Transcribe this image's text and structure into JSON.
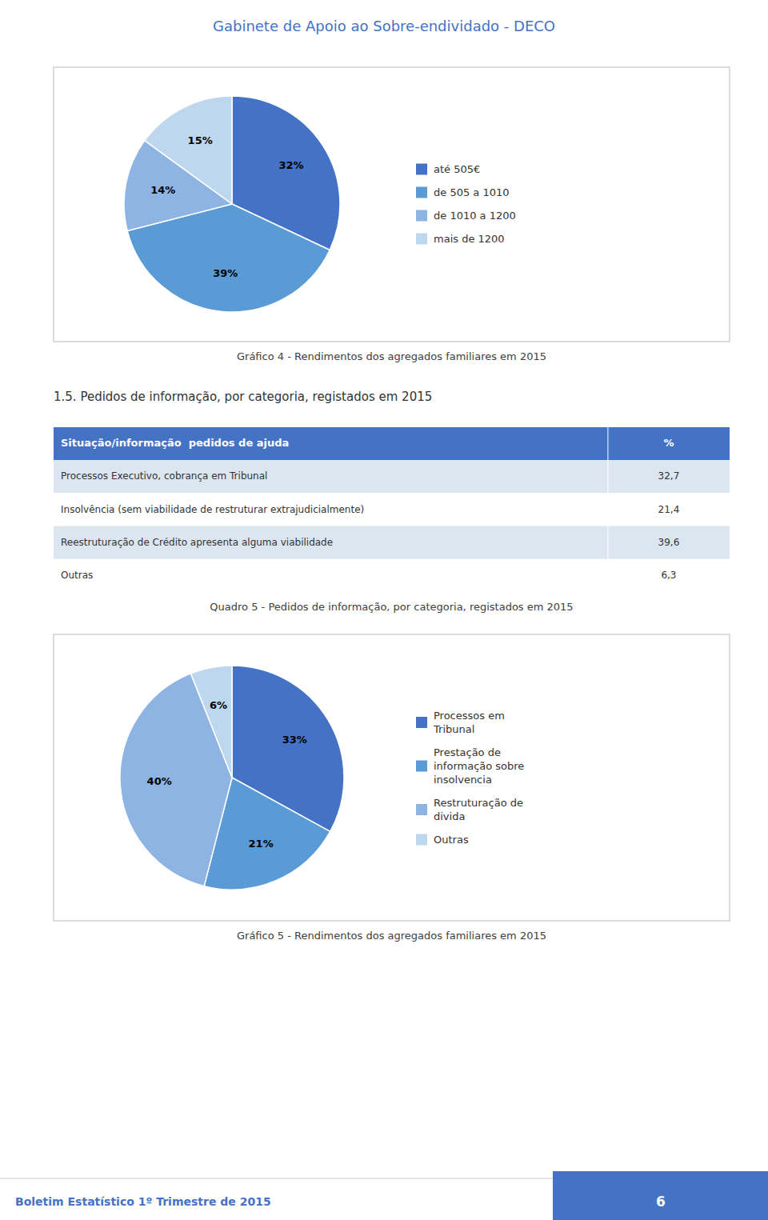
{
  "header": {
    "title": "Gabinete de Apoio ao Sobre-endividado - DECO"
  },
  "chart_data": [
    {
      "type": "pie",
      "title": "Gráfico 4 - Rendimentos dos agregados familiares em 2015",
      "categories": [
        "até 505€",
        "de 505 a 1010",
        "de 1010 a 1200",
        "mais de 1200"
      ],
      "values": [
        32,
        39,
        14,
        15
      ],
      "value_labels": [
        "32%",
        "39%",
        "14%",
        "15%"
      ],
      "colors": [
        "#4472C4",
        "#5B9BD5",
        "#8DB4E2",
        "#BDD7EE"
      ],
      "data_labels": true,
      "legend": "right"
    },
    {
      "type": "table",
      "title": "1.5. Pedidos de informação, por categoria, registados em 2015",
      "columns": [
        "Situação/informação  pedidos de ajuda",
        "%"
      ],
      "categories": [
        "Processos Executivo, cobrança em Tribunal",
        "Insolvência (sem viabilidade de restruturar extrajudicialmente)",
        "Reestruturação de Crédito apresenta alguma viabilidade",
        "Outras"
      ],
      "values": [
        32.7,
        21.4,
        39.6,
        6.3
      ],
      "value_labels": [
        "32,7",
        "21,4",
        "39,6",
        "6,3"
      ],
      "annotations": [
        "Quadro 5 - Pedidos de informação, por categoria, registados em 2015"
      ]
    },
    {
      "type": "pie",
      "title": "Gráfico 5 - Rendimentos dos agregados familiares em 2015",
      "categories": [
        "Processos em\nTribunal",
        "Prestação de\ninformação sobre\ninsolvencia",
        "Restruturação de\ndivida",
        "Outras"
      ],
      "values": [
        33,
        21,
        40,
        6
      ],
      "value_labels": [
        "33%",
        "21%",
        "40%",
        "6%"
      ],
      "colors": [
        "#4472C4",
        "#5B9BD5",
        "#8DB4E2",
        "#BDD7EE"
      ],
      "data_labels": true,
      "legend": "right"
    }
  ],
  "footer": {
    "text": "Boletim Estatístico 1º Trimestre de 2015",
    "page": "6"
  }
}
